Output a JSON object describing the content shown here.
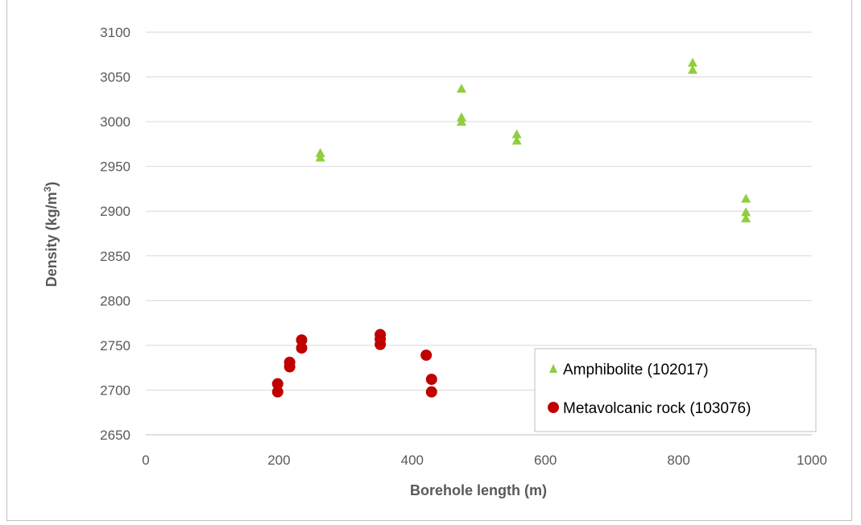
{
  "chart_data": {
    "type": "scatter",
    "title": "",
    "xlabel": "Borehole length (m)",
    "ylabel_main": "Density (kg/m",
    "ylabel_sup": "3",
    "ylabel_close": ")",
    "xlim": [
      0,
      1000
    ],
    "ylim": [
      2650,
      3100
    ],
    "x_ticks": [
      "0",
      "200",
      "400",
      "600",
      "800",
      "1000"
    ],
    "y_ticks": [
      "2650",
      "2700",
      "2750",
      "2800",
      "2850",
      "2900",
      "2950",
      "3000",
      "3050",
      "3100"
    ],
    "grid": "horizontal",
    "legend_position": "bottom-right",
    "series": [
      {
        "name": "Amphibolite (102017)",
        "marker": "triangle",
        "color": "#8fce3c",
        "points": [
          {
            "x": 262,
            "y": 2965
          },
          {
            "x": 262,
            "y": 2960
          },
          {
            "x": 474,
            "y": 3037
          },
          {
            "x": 474,
            "y": 3005
          },
          {
            "x": 474,
            "y": 3000
          },
          {
            "x": 557,
            "y": 2986
          },
          {
            "x": 557,
            "y": 2979
          },
          {
            "x": 821,
            "y": 3066
          },
          {
            "x": 821,
            "y": 3058
          },
          {
            "x": 901,
            "y": 2914
          },
          {
            "x": 901,
            "y": 2899
          },
          {
            "x": 901,
            "y": 2892
          }
        ]
      },
      {
        "name": "Metavolcanic rock (103076)",
        "marker": "circle",
        "color": "#c00000",
        "points": [
          {
            "x": 198,
            "y": 2707
          },
          {
            "x": 198,
            "y": 2698
          },
          {
            "x": 216,
            "y": 2731
          },
          {
            "x": 216,
            "y": 2726
          },
          {
            "x": 234,
            "y": 2756
          },
          {
            "x": 234,
            "y": 2747
          },
          {
            "x": 352,
            "y": 2762
          },
          {
            "x": 352,
            "y": 2757
          },
          {
            "x": 352,
            "y": 2751
          },
          {
            "x": 421,
            "y": 2739
          },
          {
            "x": 429,
            "y": 2712
          },
          {
            "x": 429,
            "y": 2698
          }
        ]
      }
    ]
  }
}
